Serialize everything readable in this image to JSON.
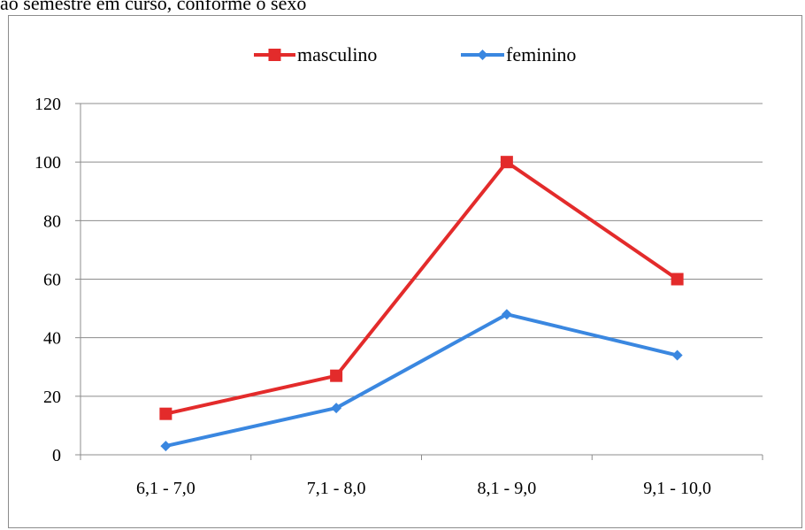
{
  "caption": "ao semestre em curso, conforme o sexo",
  "chart_data": {
    "type": "line",
    "title": "",
    "xlabel": "",
    "ylabel": "",
    "categories": [
      "6,1 - 7,0",
      "7,1 - 8,0",
      "8,1 - 9,0",
      "9,1 - 10,0"
    ],
    "series": [
      {
        "name": "masculino",
        "values": [
          14,
          27,
          100,
          60
        ],
        "color": "#e32b2b",
        "marker": "square"
      },
      {
        "name": "feminino",
        "values": [
          3,
          16,
          48,
          34
        ],
        "color": "#3a87e0",
        "marker": "diamond"
      }
    ],
    "ylim": [
      0,
      120
    ],
    "yticks": [
      "0",
      "20",
      "40",
      "60",
      "80",
      "100",
      "120"
    ],
    "grid": true,
    "legend_position": "top-center"
  }
}
